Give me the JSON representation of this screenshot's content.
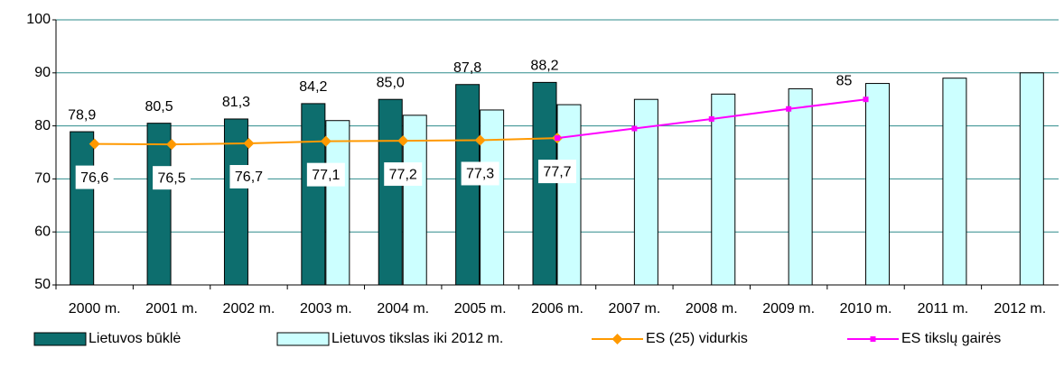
{
  "chart_data": {
    "type": "bar",
    "categories": [
      "2000 m.",
      "2001 m.",
      "2002 m.",
      "2003 m.",
      "2004 m.",
      "2005 m.",
      "2006 m.",
      "2007 m.",
      "2008 m.",
      "2009 m.",
      "2010 m.",
      "2011 m.",
      "2012 m."
    ],
    "series": [
      {
        "name": "Lietuvos būklė",
        "type": "bar",
        "color": "#0d6e6e",
        "values": [
          78.9,
          80.5,
          81.3,
          84.2,
          85.0,
          87.8,
          88.2,
          null,
          null,
          null,
          null,
          null,
          null
        ],
        "value_labels": [
          "78,9",
          "80,5",
          "81,3",
          "84,2",
          "85,0",
          "87,8",
          "88,2",
          null,
          null,
          null,
          null,
          null,
          null
        ]
      },
      {
        "name": "Lietuvos tikslas iki 2012 m.",
        "type": "bar",
        "color": "#ccffff",
        "values": [
          null,
          null,
          null,
          81,
          82,
          83,
          84,
          85,
          86,
          87,
          88,
          89,
          90
        ]
      },
      {
        "name": "ES (25) vidurkis",
        "type": "line",
        "color": "#ff9900",
        "values": [
          76.6,
          76.5,
          76.7,
          77.1,
          77.2,
          77.3,
          77.7,
          null,
          null,
          null,
          null,
          null,
          null
        ],
        "value_labels": [
          "76,6",
          "76,5",
          "76,7",
          "77,1",
          "77,2",
          "77,3",
          "77,7",
          null,
          null,
          null,
          null,
          null,
          null
        ]
      },
      {
        "name": "ES tikslų gairės",
        "type": "line",
        "color": "#ff00ff",
        "values": [
          null,
          null,
          null,
          null,
          null,
          null,
          77.7,
          79.5,
          81.3,
          83.2,
          85,
          null,
          null
        ],
        "value_labels": [
          null,
          null,
          null,
          null,
          null,
          null,
          null,
          null,
          null,
          null,
          "85",
          null,
          null
        ]
      }
    ],
    "ylim": [
      50,
      100
    ],
    "yticks": [
      50,
      60,
      70,
      80,
      90,
      100
    ],
    "grid": true,
    "legend": "bottom"
  }
}
